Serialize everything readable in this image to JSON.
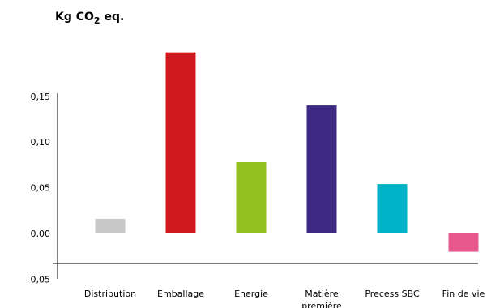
{
  "chart_data": {
    "type": "bar",
    "title": {
      "prefix": "Kg CO",
      "subscript": "2",
      "suffix": " eq."
    },
    "xlabel": "",
    "ylabel": "",
    "categories": [
      {
        "line1": "Distribution",
        "line2": ""
      },
      {
        "line1": "Emballage",
        "line2": ""
      },
      {
        "line1": "Energie",
        "line2": ""
      },
      {
        "line1": "Matière",
        "line2": "première"
      },
      {
        "line1": "Precess SBC",
        "line2": ""
      },
      {
        "line1": "Fin de vie",
        "line2": ""
      }
    ],
    "values": [
      0.016,
      0.198,
      0.078,
      0.14,
      0.054,
      -0.02
    ],
    "colors": [
      "#c8c8c8",
      "#d0181f",
      "#94c11f",
      "#3d2983",
      "#00b3c6",
      "#e8588c"
    ],
    "yticks": [
      "-0,05",
      "0,00",
      "0,05",
      "0,10",
      "0,15"
    ],
    "ylim": [
      -0.055,
      0.2
    ],
    "grid": false,
    "legend": "none"
  }
}
